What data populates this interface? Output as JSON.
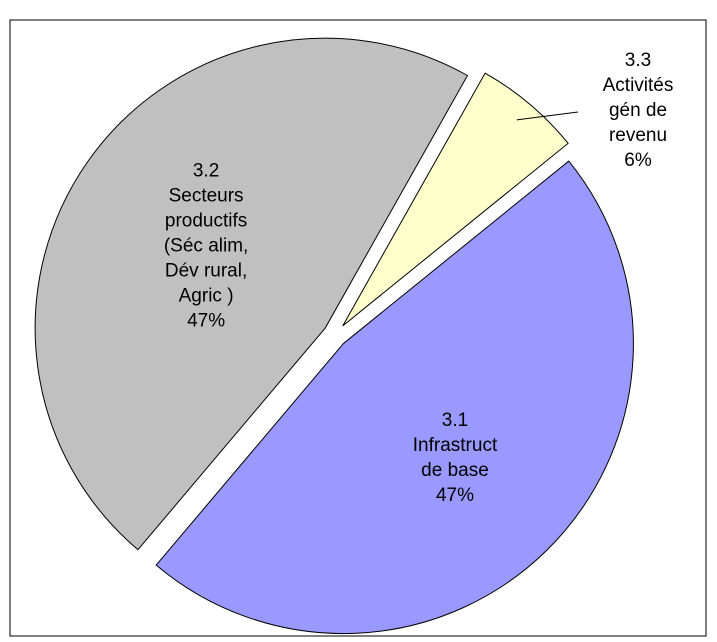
{
  "chart_data": {
    "type": "pie",
    "categories": [
      [
        "3.1",
        "Infrastruct",
        "de base"
      ],
      [
        "3.2",
        "Secteurs",
        "productifs",
        "(Séc alim,",
        "Dév rural,",
        "Agric )"
      ],
      [
        "3.3",
        "Activités",
        "gén de",
        "revenu"
      ]
    ],
    "values": [
      47,
      47,
      6
    ],
    "value_labels": [
      "47%",
      "47%",
      "6%"
    ],
    "colors": [
      "#9999ff",
      "#c0c0c0",
      "#ffffcc"
    ]
  }
}
